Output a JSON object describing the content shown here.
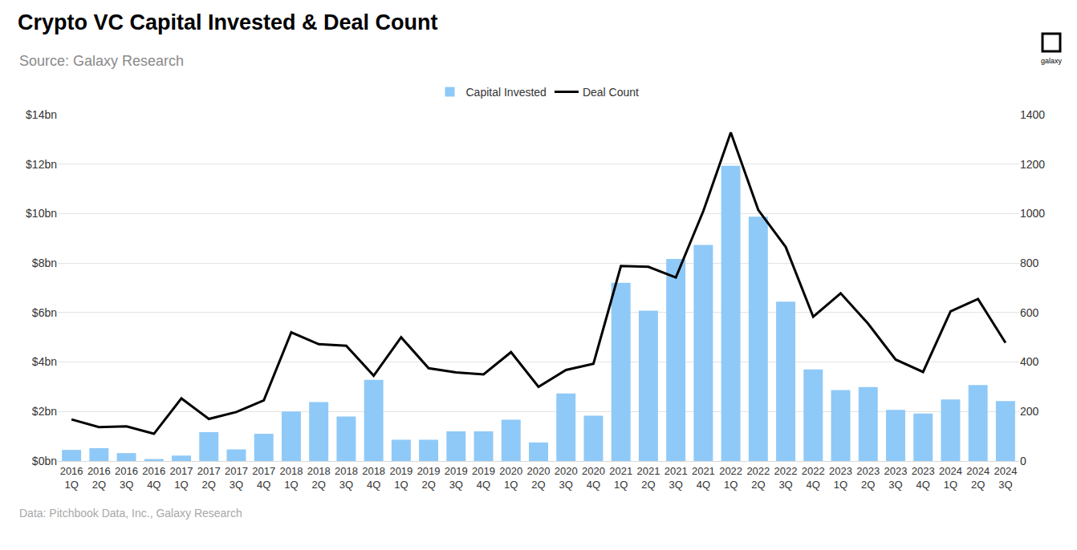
{
  "chart_data": {
    "type": "bar",
    "title": "Crypto VC Capital Invested & Deal Count",
    "subtitle": "Source: Galaxy Research",
    "annotations": [
      "Data: Pitchbook Data, Inc., Galaxy Research",
      "galaxy"
    ],
    "categories": [
      "2016 1Q",
      "2016 2Q",
      "2016 3Q",
      "2016 4Q",
      "2017 1Q",
      "2017 2Q",
      "2017 3Q",
      "2017 4Q",
      "2018 1Q",
      "2018 2Q",
      "2018 3Q",
      "2018 4Q",
      "2019 1Q",
      "2019 2Q",
      "2019 3Q",
      "2019 4Q",
      "2020 1Q",
      "2020 2Q",
      "2020 3Q",
      "2020 4Q",
      "2021 1Q",
      "2021 2Q",
      "2021 3Q",
      "2021 4Q",
      "2022 1Q",
      "2022 2Q",
      "2022 3Q",
      "2022 4Q",
      "2023 1Q",
      "2023 2Q",
      "2023 3Q",
      "2023 4Q",
      "2024 1Q",
      "2024 2Q",
      "2024 3Q"
    ],
    "series": [
      {
        "name": "Capital Invested",
        "type": "bar",
        "color": "#8fc9f7",
        "values": [
          0.45,
          0.52,
          0.32,
          0.08,
          0.22,
          1.17,
          0.47,
          1.1,
          2.0,
          2.38,
          1.8,
          3.28,
          0.86,
          0.86,
          1.2,
          1.2,
          1.67,
          0.75,
          2.73,
          1.83,
          7.2,
          6.08,
          8.17,
          8.73,
          11.93,
          9.88,
          6.44,
          3.7,
          2.87,
          2.99,
          2.07,
          1.92,
          2.49,
          3.07,
          2.42
        ]
      },
      {
        "name": "Deal Count",
        "type": "line",
        "color": "#000000",
        "axis": "y2",
        "values": [
          168,
          137,
          140,
          110,
          253,
          170,
          198,
          245,
          520,
          472,
          466,
          345,
          500,
          375,
          358,
          350,
          440,
          300,
          368,
          393,
          788,
          785,
          742,
          1010,
          1328,
          1015,
          865,
          583,
          678,
          555,
          410,
          360,
          605,
          655,
          478
        ]
      }
    ],
    "ylim": [
      0,
      14
    ],
    "yticks": [
      {
        "value": 0,
        "label": "$0bn"
      },
      {
        "value": 2,
        "label": "$2bn"
      },
      {
        "value": 4,
        "label": "$4bn"
      },
      {
        "value": 6,
        "label": "$6bn"
      },
      {
        "value": 8,
        "label": "$8bn"
      },
      {
        "value": 10,
        "label": "$10bn"
      },
      {
        "value": 12,
        "label": "$12bn"
      },
      {
        "value": 14,
        "label": "$14bn"
      }
    ],
    "y2lim": [
      0,
      1400
    ],
    "y2ticks": [
      0,
      200,
      400,
      600,
      800,
      1000,
      1200,
      1400
    ],
    "grid": true,
    "legend": "top"
  }
}
